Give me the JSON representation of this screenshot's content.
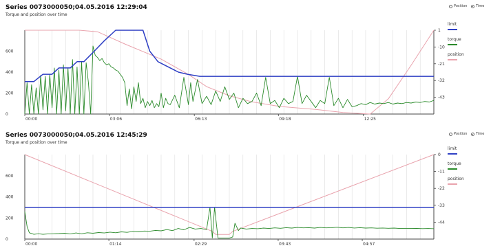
{
  "radio": {
    "position_label": "Position",
    "time_label": "Time",
    "selected": "time"
  },
  "colors": {
    "limit": "#2e3fc4",
    "torque": "#2a8a2a",
    "position": "#e9a3ad",
    "grid": "#dddddd"
  },
  "chart_data": [
    {
      "type": "line",
      "title": "Series 0073000050;04.05.2016 12:29:04",
      "subtitle": "Torque and position over time",
      "x_tick_labels": [
        "00:00",
        "03:06",
        "06:13",
        "09:18",
        "12:25"
      ],
      "xlim": [
        0,
        900
      ],
      "x_ticks": [
        0,
        186,
        373,
        558,
        745
      ],
      "ylim_left": [
        0,
        800
      ],
      "y_ticks_left": [
        0,
        200,
        400,
        600
      ],
      "ylim_right": [
        -54,
        1
      ],
      "y_ticks_right": [
        1,
        -10,
        -21,
        -32,
        -43
      ],
      "legend": [
        "limit",
        "torque",
        "position"
      ],
      "series": [
        {
          "name": "limit",
          "axis": "left",
          "x": [
            0,
            20,
            40,
            60,
            75,
            100,
            115,
            130,
            155,
            175,
            200,
            215,
            240,
            260,
            275,
            293,
            338,
            358,
            385,
            900
          ],
          "y": [
            310,
            310,
            380,
            380,
            440,
            440,
            500,
            500,
            610,
            700,
            800,
            800,
            800,
            800,
            600,
            500,
            400,
            380,
            360,
            360
          ]
        },
        {
          "name": "torque",
          "axis": "left",
          "x": [
            0,
            5,
            10,
            15,
            20,
            25,
            30,
            35,
            40,
            45,
            50,
            55,
            60,
            65,
            70,
            75,
            80,
            85,
            90,
            95,
            100,
            105,
            110,
            115,
            120,
            125,
            130,
            135,
            140,
            145,
            150,
            155,
            160,
            165,
            170,
            175,
            180,
            185,
            190,
            195,
            200,
            205,
            210,
            215,
            220,
            225,
            230,
            235,
            240,
            245,
            250,
            255,
            260,
            265,
            270,
            275,
            280,
            285,
            290,
            295,
            300,
            305,
            310,
            315,
            320,
            330,
            340,
            350,
            360,
            365,
            370,
            380,
            390,
            400,
            410,
            420,
            430,
            440,
            450,
            460,
            470,
            480,
            490,
            500,
            510,
            520,
            530,
            540,
            550,
            560,
            570,
            580,
            590,
            600,
            610,
            620,
            630,
            640,
            650,
            660,
            670,
            680,
            690,
            700,
            710,
            720,
            730,
            740,
            750,
            760,
            770,
            780,
            790,
            800,
            810,
            820,
            830,
            840,
            850,
            860,
            870,
            880,
            890,
            900
          ],
          "y": [
            0,
            300,
            0,
            280,
            0,
            250,
            0,
            370,
            40,
            360,
            0,
            380,
            60,
            440,
            0,
            420,
            0,
            470,
            30,
            440,
            0,
            520,
            0,
            450,
            0,
            500,
            0,
            490,
            300,
            0,
            650,
            560,
            540,
            510,
            530,
            490,
            470,
            480,
            450,
            440,
            420,
            410,
            380,
            350,
            300,
            80,
            240,
            50,
            260,
            120,
            300,
            100,
            150,
            60,
            120,
            80,
            130,
            60,
            100,
            70,
            200,
            60,
            150,
            100,
            90,
            180,
            60,
            350,
            90,
            300,
            120,
            330,
            100,
            170,
            90,
            220,
            120,
            260,
            140,
            200,
            60,
            150,
            100,
            120,
            200,
            80,
            350,
            100,
            130,
            60,
            150,
            100,
            120,
            360,
            100,
            180,
            120,
            60,
            130,
            100,
            350,
            80,
            150,
            60,
            140,
            70,
            80,
            100,
            90,
            110,
            95,
            105,
            100,
            110,
            95,
            105,
            100,
            110,
            105,
            115,
            110,
            120,
            115,
            130
          ]
        },
        {
          "name": "position",
          "axis": "right",
          "x": [
            0,
            120,
            160,
            220,
            300,
            360,
            400,
            450,
            500,
            560,
            600,
            640,
            700,
            760,
            800,
            850,
            900
          ],
          "y": [
            1,
            1,
            0,
            -8,
            -18,
            -28,
            -36,
            -42,
            -46,
            -49,
            -50,
            -51,
            -53,
            -54,
            -44,
            -22,
            1
          ]
        }
      ]
    },
    {
      "type": "line",
      "title": "Series 0073000050;04.05.2016 12:45:29",
      "subtitle": "Torque and position over time",
      "x_tick_labels": [
        "00:00",
        "01:14",
        "02:29",
        "03:43",
        "04:57"
      ],
      "xlim": [
        0,
        360
      ],
      "x_ticks": [
        0,
        74,
        149,
        223,
        297
      ],
      "ylim_left": [
        0,
        800
      ],
      "y_ticks_left": [
        0,
        200,
        400,
        600
      ],
      "ylim_right": [
        -55,
        0
      ],
      "y_ticks_right": [
        0,
        -11,
        -22,
        -33,
        -44
      ],
      "legend": [
        "limit",
        "torque",
        "position"
      ],
      "series": [
        {
          "name": "limit",
          "axis": "left",
          "x": [
            0,
            360
          ],
          "y": [
            300,
            300
          ]
        },
        {
          "name": "torque",
          "axis": "left",
          "x": [
            0,
            2,
            4,
            8,
            12,
            16,
            20,
            25,
            30,
            35,
            40,
            45,
            50,
            55,
            60,
            65,
            70,
            75,
            80,
            85,
            90,
            95,
            100,
            105,
            110,
            115,
            120,
            125,
            130,
            135,
            140,
            145,
            150,
            155,
            160,
            163,
            165,
            167,
            170,
            172,
            175,
            178,
            180,
            183,
            185,
            188,
            190,
            195,
            200,
            205,
            210,
            215,
            220,
            225,
            230,
            235,
            240,
            245,
            250,
            255,
            260,
            265,
            270,
            275,
            280,
            285,
            290,
            295,
            300,
            305,
            310,
            315,
            320,
            325,
            330,
            335,
            340,
            345,
            350,
            355,
            360
          ],
          "y": [
            260,
            120,
            60,
            45,
            50,
            45,
            48,
            50,
            52,
            55,
            48,
            58,
            50,
            60,
            55,
            62,
            58,
            66,
            60,
            68,
            64,
            72,
            68,
            76,
            74,
            82,
            78,
            90,
            80,
            100,
            88,
            110,
            95,
            100,
            90,
            300,
            10,
            300,
            10,
            10,
            10,
            10,
            10,
            20,
            150,
            80,
            105,
            95,
            100,
            98,
            104,
            100,
            106,
            102,
            108,
            104,
            110,
            106,
            108,
            104,
            110,
            106,
            108,
            112,
            106,
            110,
            105,
            108,
            104,
            106,
            103,
            105,
            102,
            104,
            100,
            102,
            100,
            101,
            99,
            100,
            98
          ]
        },
        {
          "name": "position",
          "axis": "right",
          "x": [
            0,
            165,
            168,
            180,
            183,
            360
          ],
          "y": [
            0,
            -50,
            -52,
            -52,
            -50,
            0
          ]
        }
      ]
    }
  ]
}
